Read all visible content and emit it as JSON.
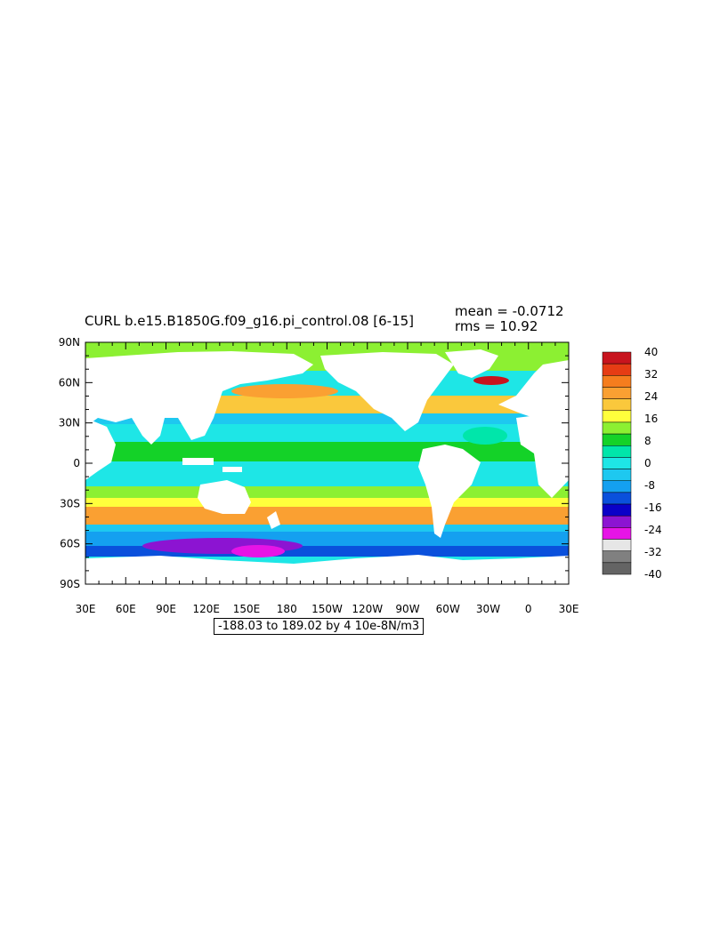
{
  "title": "CURL  b.e15.B1850G.f09_g16.pi_control.08  [6-15]",
  "stats": {
    "mean": "mean = -0.0712",
    "rms": "rms = 10.92"
  },
  "range_note": "-188.03 to 189.02 by 4 10e-8N/m3",
  "lat_labels": [
    "90N",
    "60N",
    "30N",
    "0",
    "30S",
    "60S",
    "90S"
  ],
  "lon_labels": [
    "30E",
    "60E",
    "90E",
    "120E",
    "150E",
    "180",
    "150W",
    "120W",
    "90W",
    "60W",
    "30W",
    "0",
    "30E"
  ],
  "colorbar": {
    "labels": [
      "40",
      "32",
      "24",
      "16",
      "8",
      "0",
      "-8",
      "-16",
      "-24",
      "-32",
      "-40"
    ],
    "colors": [
      "#c8141e",
      "#e63c14",
      "#f57d1e",
      "#faa032",
      "#fac83c",
      "#ffff3c",
      "#8cf032",
      "#14d228",
      "#00e6aa",
      "#1ee6e6",
      "#1ec8f0",
      "#14a0f0",
      "#0a50dc",
      "#0a00c8",
      "#8c14d2",
      "#e614e6",
      "#e6e6e6",
      "#808080",
      "#646464"
    ]
  }
}
